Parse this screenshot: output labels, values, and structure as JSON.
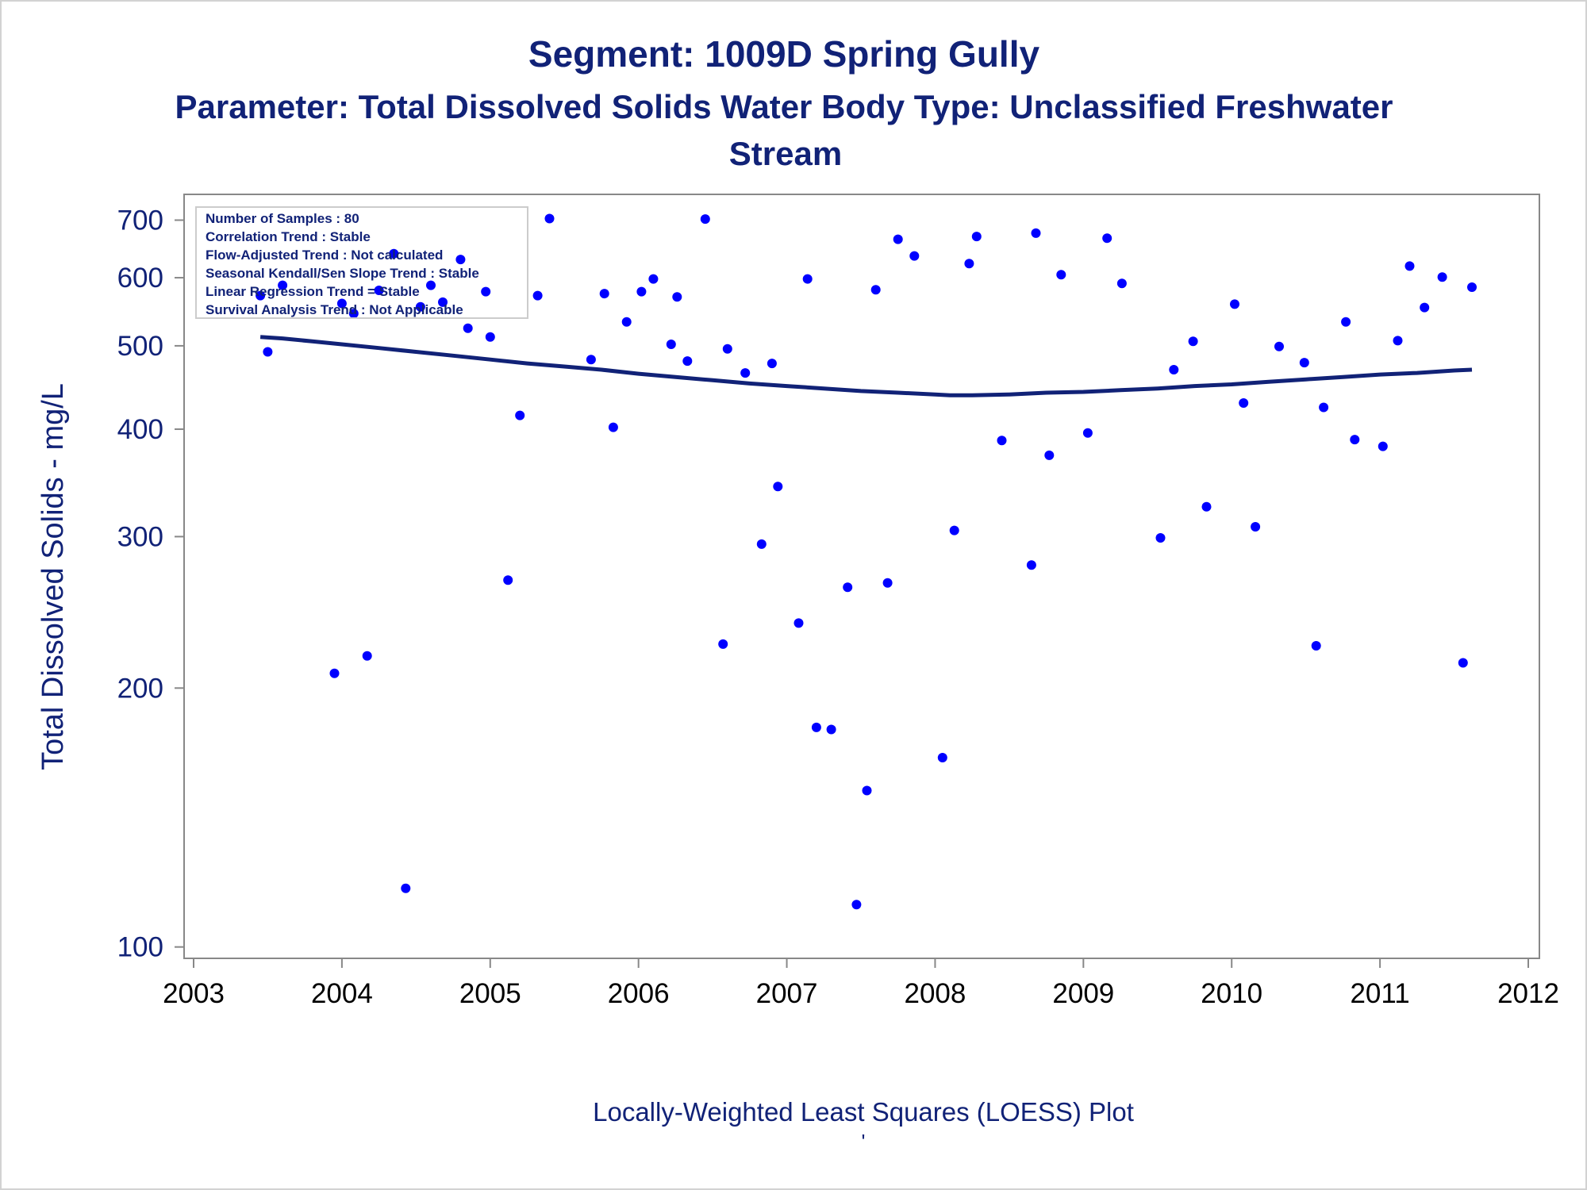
{
  "colors": {
    "title": "#112277",
    "points": "#0000ff",
    "loess_line": "#112277",
    "axis": "#888888",
    "legend_border": "#cccccc"
  },
  "title": "Segment: 1009D  Spring Gully",
  "subtitle_line1": "Parameter: Total Dissolved Solids   Water Body Type: Unclassified Freshwater",
  "subtitle_line2": "Stream",
  "footnote": "Locally-Weighted Least Squares (LOESS) Plot",
  "footnote_mark": "'",
  "stats": [
    "Number of Samples : 80",
    "Correlation Trend : Stable",
    "Flow-Adjusted Trend : Not calculated",
    "Seasonal Kendall/Sen Slope Trend : Stable",
    "Linear Regression Trend = Stable",
    "Survival Analysis Trend : Not Applicable"
  ],
  "chart_data": {
    "type": "scatter",
    "title": "Segment: 1009D  Spring Gully",
    "subtitle": "Parameter: Total Dissolved Solids   Water Body Type: Unclassified Freshwater Stream",
    "xlabel": "",
    "ylabel": "Total Dissolved Solids - mg/L",
    "x_ticks": [
      "2003",
      "2004",
      "2005",
      "2006",
      "2007",
      "2008",
      "2009",
      "2010",
      "2011",
      "2012"
    ],
    "y_ticks": [
      "100",
      "200",
      "300",
      "400",
      "500",
      "600",
      "700"
    ],
    "xlim": [
      2003,
      2012
    ],
    "ylim": [
      97,
      750
    ],
    "y_scale": "log",
    "grid": false,
    "series": [
      {
        "type": "scatter",
        "points": [
          [
            2003.45,
            572
          ],
          [
            2003.5,
            492
          ],
          [
            2003.6,
            588
          ],
          [
            2003.95,
            208
          ],
          [
            2004.0,
            560
          ],
          [
            2004.08,
            545
          ],
          [
            2004.17,
            218
          ],
          [
            2004.25,
            580
          ],
          [
            2004.35,
            640
          ],
          [
            2004.43,
            117
          ],
          [
            2004.53,
            555
          ],
          [
            2004.6,
            588
          ],
          [
            2004.68,
            562
          ],
          [
            2004.8,
            630
          ],
          [
            2004.85,
            524
          ],
          [
            2004.97,
            578
          ],
          [
            2005.0,
            512
          ],
          [
            2005.12,
            267
          ],
          [
            2005.2,
            415
          ],
          [
            2005.32,
            572
          ],
          [
            2005.4,
            703
          ],
          [
            2005.68,
            482
          ],
          [
            2005.77,
            575
          ],
          [
            2005.83,
            402
          ],
          [
            2005.92,
            533
          ],
          [
            2006.02,
            578
          ],
          [
            2006.1,
            598
          ],
          [
            2006.22,
            502
          ],
          [
            2006.26,
            570
          ],
          [
            2006.33,
            480
          ],
          [
            2006.45,
            702
          ],
          [
            2006.57,
            225
          ],
          [
            2006.6,
            496
          ],
          [
            2006.72,
            465
          ],
          [
            2006.83,
            294
          ],
          [
            2006.9,
            477
          ],
          [
            2006.94,
            343
          ],
          [
            2007.08,
            238
          ],
          [
            2007.14,
            598
          ],
          [
            2007.2,
            180
          ],
          [
            2007.3,
            179
          ],
          [
            2007.41,
            262
          ],
          [
            2007.47,
            112
          ],
          [
            2007.54,
            152
          ],
          [
            2007.6,
            581
          ],
          [
            2007.68,
            265
          ],
          [
            2007.75,
            665
          ],
          [
            2007.86,
            636
          ],
          [
            2008.05,
            166
          ],
          [
            2008.13,
            305
          ],
          [
            2008.23,
            623
          ],
          [
            2008.28,
            670
          ],
          [
            2008.45,
            388
          ],
          [
            2008.65,
            278
          ],
          [
            2008.68,
            676
          ],
          [
            2008.77,
            373
          ],
          [
            2008.85,
            605
          ],
          [
            2009.03,
            396
          ],
          [
            2009.16,
            667
          ],
          [
            2009.26,
            591
          ],
          [
            2009.52,
            299
          ],
          [
            2009.61,
            469
          ],
          [
            2009.74,
            506
          ],
          [
            2009.83,
            325
          ],
          [
            2010.02,
            559
          ],
          [
            2010.08,
            429
          ],
          [
            2010.16,
            308
          ],
          [
            2010.32,
            499
          ],
          [
            2010.49,
            478
          ],
          [
            2010.57,
            224
          ],
          [
            2010.62,
            424
          ],
          [
            2010.77,
            533
          ],
          [
            2010.83,
            389
          ],
          [
            2011.02,
            382
          ],
          [
            2011.12,
            507
          ],
          [
            2011.2,
            619
          ],
          [
            2011.3,
            554
          ],
          [
            2011.42,
            601
          ],
          [
            2011.56,
            214
          ],
          [
            2011.62,
            585
          ]
        ]
      },
      {
        "type": "line",
        "name": "LOESS",
        "points": [
          [
            2003.45,
            512
          ],
          [
            2003.6,
            510
          ],
          [
            2003.8,
            506
          ],
          [
            2004.0,
            502
          ],
          [
            2004.25,
            497
          ],
          [
            2004.5,
            492
          ],
          [
            2004.75,
            487
          ],
          [
            2005.0,
            482
          ],
          [
            2005.25,
            477
          ],
          [
            2005.5,
            473
          ],
          [
            2005.75,
            469
          ],
          [
            2006.0,
            464
          ],
          [
            2006.25,
            460
          ],
          [
            2006.5,
            456
          ],
          [
            2006.75,
            452
          ],
          [
            2007.0,
            449
          ],
          [
            2007.25,
            446
          ],
          [
            2007.5,
            443
          ],
          [
            2007.75,
            441
          ],
          [
            2008.0,
            439
          ],
          [
            2008.1,
            438
          ],
          [
            2008.25,
            438
          ],
          [
            2008.5,
            439
          ],
          [
            2008.75,
            441
          ],
          [
            2009.0,
            442
          ],
          [
            2009.25,
            444
          ],
          [
            2009.5,
            446
          ],
          [
            2009.75,
            449
          ],
          [
            2010.0,
            451
          ],
          [
            2010.25,
            454
          ],
          [
            2010.5,
            457
          ],
          [
            2010.75,
            460
          ],
          [
            2011.0,
            463
          ],
          [
            2011.25,
            465
          ],
          [
            2011.5,
            468
          ],
          [
            2011.62,
            469
          ]
        ]
      }
    ]
  }
}
